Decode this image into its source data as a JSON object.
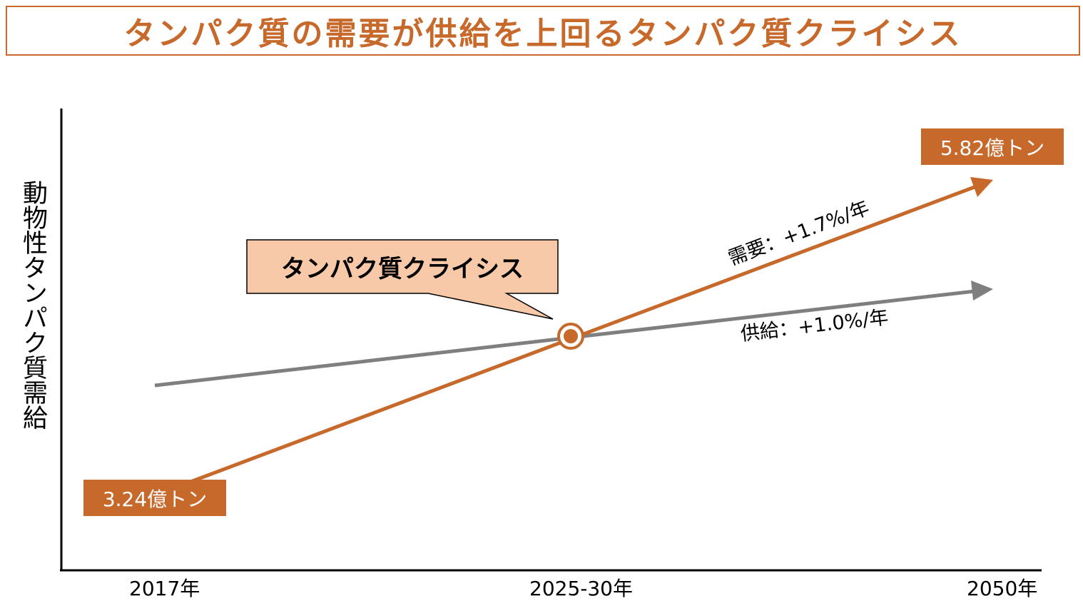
{
  "title": "タンパク質の需要が供給を上回るタンパク質クライシス",
  "y_axis_label": "動物性タンパク質需給",
  "x_ticks": [
    "2017年",
    "2025-30年",
    "2050年"
  ],
  "callout": "タンパク質クライシス",
  "start_value": "3.24億トン",
  "end_value": "5.82億トン",
  "demand_rate": "需要：+1.7%/年",
  "supply_rate": "供給：+1.0%/年",
  "colors": {
    "accent": "#c8692c",
    "supply_line": "#7f7f7f",
    "callout_fill": "#f7c9a8",
    "axis": "#000000"
  }
}
